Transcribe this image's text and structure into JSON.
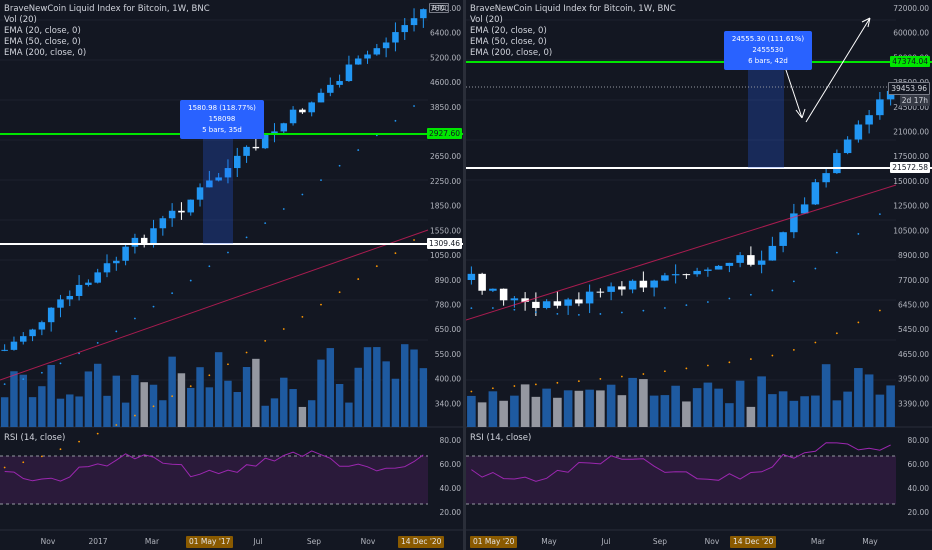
{
  "colors": {
    "background": "#131722",
    "bull": "#2196f3",
    "bear": "#ffffff",
    "vol_up": "#1e5aa0",
    "vol_down": "#9598a1",
    "green_line": "#00e600",
    "white_line": "#ffffff",
    "ema20": "#2196f3",
    "ema50": "#ff9800",
    "ema200": "#e91e63",
    "rsi": "#9c27b0",
    "rsi_band": "#2a1a3a",
    "measure": "#2962ff"
  },
  "left": {
    "legend": {
      "title": "BraveNewCoin Liquid Index for Bitcoin, 1W, BNC",
      "vol": "Vol (20)",
      "ema20": "EMA (20, close, 0)",
      "ema50": "EMA (50, close, 0)",
      "ema200": "EMA (200, close, 0)"
    },
    "rsi_label": "RSI (14, close)",
    "btc_badge": "BTC",
    "price_ticks": [
      "7600.00",
      "6400.00",
      "5200.00",
      "4600.00",
      "3850.00",
      "3250.00",
      "2650.00",
      "2250.00",
      "1850.00",
      "1550.00",
      "1050.00",
      "890.00",
      "780.00",
      "650.00",
      "550.00",
      "400.00",
      "340.00"
    ],
    "rsi_ticks": [
      "80.00",
      "60.00",
      "40.00",
      "20.00"
    ],
    "time_ticks": [
      "Nov",
      "2017",
      "Mar",
      "Jul",
      "Sep",
      "Nov"
    ],
    "green_tag": "2927.60",
    "white_tag": "1309.46",
    "measure_line1": "1580.98 (118.77%) 158098",
    "measure_line2": "5 bars, 35d",
    "date_tag_1": "01 May '17",
    "date_tag_2": "14 Dec '20"
  },
  "right": {
    "legend": {
      "title": "BraveNewCoin Liquid Index for Bitcoin, 1W, BNC",
      "vol": "Vol (20)",
      "ema20": "EMA (20, close, 0)",
      "ema50": "EMA (50, close, 0)",
      "ema200": "EMA (200, close, 0)"
    },
    "rsi_label": "RSI (14, close)",
    "price_ticks": [
      "72000.00",
      "60000.00",
      "50000.00",
      "28500.00",
      "24500.00",
      "21000.00",
      "17500.00",
      "15000.00",
      "12500.00",
      "10500.00",
      "8900.00",
      "7700.00",
      "6450.00",
      "5450.00",
      "4650.00",
      "3950.00",
      "3390.00"
    ],
    "rsi_ticks": [
      "80.00",
      "60.00",
      "40.00",
      "20.00"
    ],
    "time_ticks": [
      "May",
      "Jul",
      "Sep",
      "Nov",
      "21",
      "Mar",
      "May"
    ],
    "green_tag": "47374.04",
    "white_tag": "21572.58",
    "current_tag": "39453.96",
    "countdown_tag": "2d 17h",
    "measure_line1": "24555.30 (111.61%) 2455530",
    "measure_line2": "6 bars, 42d",
    "date_tag_1": "01 May '20",
    "date_tag_2": "14 Dec '20"
  }
}
